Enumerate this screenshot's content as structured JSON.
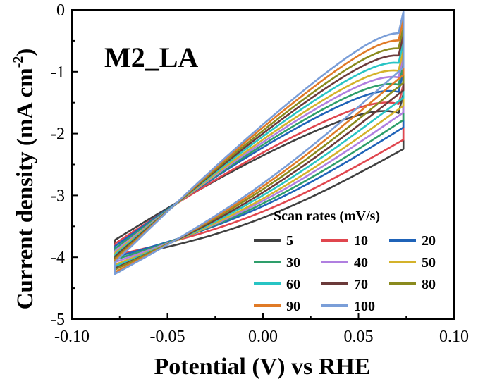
{
  "chart_data": {
    "type": "line",
    "title": "",
    "annotation": "M2_LA",
    "xlabel": "Potential (V) vs RHE",
    "ylabel": "Current density (mA cm",
    "ylabel_sup": "-2",
    "ylabel_close": ")",
    "xlim": [
      -0.1,
      0.1
    ],
    "ylim": [
      -5,
      0
    ],
    "xticks": [
      -0.1,
      -0.05,
      0.0,
      0.05,
      0.1
    ],
    "xtick_labels": [
      "-0.10",
      "-0.05",
      "0.00",
      "0.05",
      "0.10"
    ],
    "yticks": [
      -5,
      -4,
      -3,
      -2,
      -1,
      0
    ],
    "ytick_labels": [
      "-5",
      "-4",
      "-3",
      "-2",
      "-1",
      "0"
    ],
    "grid": false,
    "legend_title": "Scan rates (mV/s)",
    "legend_position": "bottom-right",
    "potential_window": [
      -0.0775,
      0.0735
    ],
    "series": [
      {
        "name": "5",
        "color": "#404040",
        "anodic_start": -3.72,
        "anodic_end": -1.35,
        "cathodic_end": -4.02,
        "anodic_mid": -2.08,
        "cathodic_mid": -2.72
      },
      {
        "name": "10",
        "color": "#e0464e",
        "anodic_start": -3.78,
        "anodic_end": -1.2,
        "cathodic_end": -3.97,
        "anodic_mid": -1.95,
        "cathodic_mid": -2.8
      },
      {
        "name": "20",
        "color": "#1f63b8",
        "anodic_start": -3.82,
        "anodic_end": -1.0,
        "cathodic_end": -4.0,
        "anodic_mid": -1.85,
        "cathodic_mid": -2.9
      },
      {
        "name": "30",
        "color": "#2e9e6b",
        "anodic_start": -3.86,
        "anodic_end": -0.88,
        "cathodic_end": -4.04,
        "anodic_mid": -1.77,
        "cathodic_mid": -2.98
      },
      {
        "name": "40",
        "color": "#b07fe0",
        "anodic_start": -3.9,
        "anodic_end": -0.76,
        "cathodic_end": -4.08,
        "anodic_mid": -1.7,
        "cathodic_mid": -3.05
      },
      {
        "name": "50",
        "color": "#d4b22a",
        "anodic_start": -3.93,
        "anodic_end": -0.65,
        "cathodic_end": -4.12,
        "anodic_mid": -1.63,
        "cathodic_mid": -3.1
      },
      {
        "name": "60",
        "color": "#28c4c4",
        "anodic_start": -3.96,
        "anodic_end": -0.52,
        "cathodic_end": -4.15,
        "anodic_mid": -1.57,
        "cathodic_mid": -3.16
      },
      {
        "name": "70",
        "color": "#6b3a3a",
        "anodic_start": -3.99,
        "anodic_end": -0.4,
        "cathodic_end": -4.18,
        "anodic_mid": -1.52,
        "cathodic_mid": -3.22
      },
      {
        "name": "80",
        "color": "#8a8a1e",
        "anodic_start": -4.02,
        "anodic_end": -0.28,
        "cathodic_end": -4.2,
        "anodic_mid": -1.47,
        "cathodic_mid": -3.27
      },
      {
        "name": "90",
        "color": "#e07a26",
        "anodic_start": -4.05,
        "anodic_end": -0.15,
        "cathodic_end": -4.24,
        "anodic_mid": -1.42,
        "cathodic_mid": -3.32
      },
      {
        "name": "100",
        "color": "#7a9ed8",
        "anodic_start": -4.08,
        "anodic_end": -0.03,
        "cathodic_end": -4.27,
        "anodic_mid": -1.38,
        "cathodic_mid": -3.38
      }
    ]
  }
}
